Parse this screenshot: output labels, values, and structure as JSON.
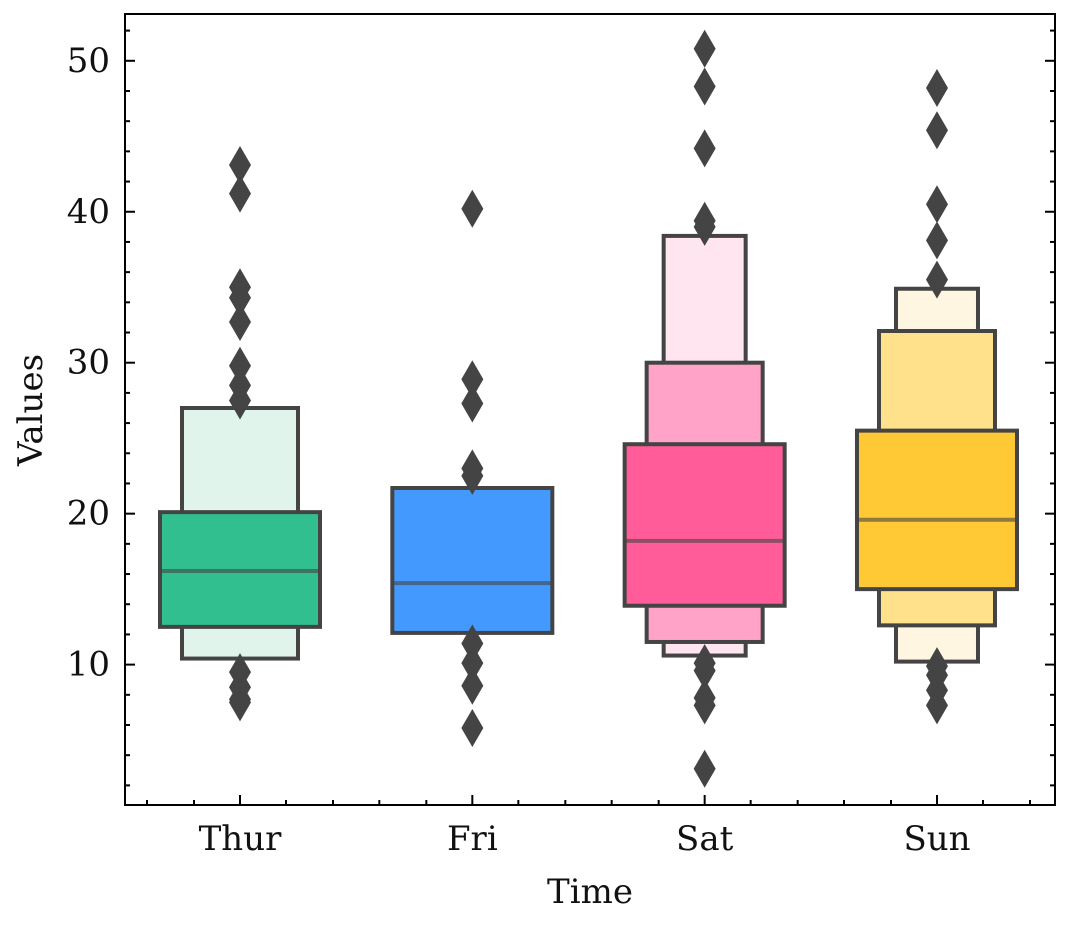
{
  "chart_data": {
    "type": "boxen",
    "xlabel": "Time",
    "ylabel": "Values",
    "categories": [
      "Thur",
      "Fri",
      "Sat",
      "Sun"
    ],
    "ylim": [
      0.7,
      53.1
    ],
    "yticks": [
      10,
      20,
      30,
      40,
      50
    ],
    "grid": false,
    "legend": "none",
    "edge_color": "#444444",
    "groups": [
      {
        "category": "Thur",
        "colors": [
          "#31bf8f",
          "#e0f4ec"
        ],
        "median": 16.2,
        "boxes": [
          [
            12.5,
            20.1
          ],
          [
            10.4,
            27.0
          ]
        ],
        "outliers": [
          7.5,
          7.7,
          8.5,
          9.5,
          27.5,
          28.5,
          29.8,
          32.7,
          34.3,
          35.0,
          41.2,
          43.1
        ]
      },
      {
        "category": "Fri",
        "colors": [
          "#4499ff"
        ],
        "median": 15.4,
        "boxes": [
          [
            12.1,
            21.7
          ]
        ],
        "outliers": [
          5.8,
          8.6,
          10.1,
          11.4,
          22.5,
          23.0,
          27.3,
          28.9,
          40.2
        ]
      },
      {
        "category": "Sat",
        "colors": [
          "#ff5c99",
          "#ffa3c8",
          "#ffe5ef"
        ],
        "median": 18.2,
        "boxes": [
          [
            13.9,
            24.6
          ],
          [
            11.5,
            30.0
          ],
          [
            10.6,
            38.4
          ]
        ],
        "outliers": [
          3.1,
          7.3,
          7.8,
          9.6,
          10.1,
          39.0,
          39.4,
          44.2,
          48.3,
          50.8
        ]
      },
      {
        "category": "Sun",
        "colors": [
          "#ffc936",
          "#ffe18b",
          "#fff6e1"
        ],
        "median": 19.6,
        "boxes": [
          [
            15.0,
            25.5
          ],
          [
            12.6,
            32.1
          ],
          [
            10.2,
            34.9
          ]
        ],
        "outliers": [
          7.3,
          8.3,
          9.3,
          9.9,
          35.5,
          38.1,
          40.5,
          45.4,
          48.2
        ]
      }
    ]
  }
}
